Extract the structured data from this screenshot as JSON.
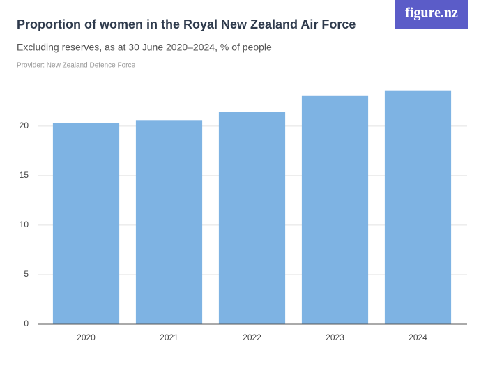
{
  "logo": "figure.nz",
  "chart_data": {
    "type": "bar",
    "title": "Proportion of women in the Royal New Zealand Air Force",
    "subtitle": "Excluding reserves, as at 30 June 2020–2024, % of people",
    "provider": "Provider: New Zealand Defence Force",
    "categories": [
      "2020",
      "2021",
      "2022",
      "2023",
      "2024"
    ],
    "values": [
      20.3,
      20.6,
      21.4,
      23.1,
      23.6
    ],
    "color": "#7eb3e3",
    "ylim": [
      0,
      24
    ],
    "yticks": [
      0,
      5,
      10,
      15,
      20
    ],
    "grid": true
  }
}
